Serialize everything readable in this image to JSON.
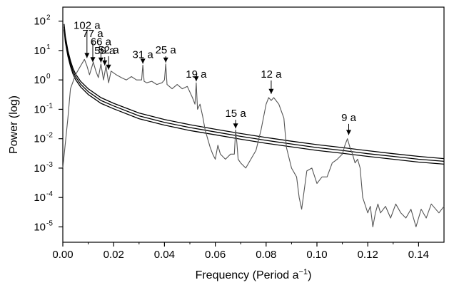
{
  "chart_data": {
    "type": "line",
    "title": "",
    "xlabel": "Frequency (Period a",
    "xlabel_sup": "−1",
    "xlabel_end": ")",
    "ylabel": "Power (log)",
    "x_scale": "linear",
    "y_scale": "log",
    "xlim": [
      0,
      0.15
    ],
    "ylim": [
      3e-06,
      300
    ],
    "x_ticks": [
      0.0,
      0.02,
      0.04,
      0.06,
      0.08,
      0.1,
      0.12,
      0.14
    ],
    "x_tick_labels": [
      "0.00",
      "0.02",
      "0.04",
      "0.06",
      "0.08",
      "0.10",
      "0.12",
      "0.14"
    ],
    "y_tick_base": "10",
    "y_ticks": [
      {
        "value": 100,
        "exp": "2"
      },
      {
        "value": 10,
        "exp": "1"
      },
      {
        "value": 1,
        "exp": "0"
      },
      {
        "value": 0.1,
        "exp": "-1"
      },
      {
        "value": 0.01,
        "exp": "-2"
      },
      {
        "value": 0.001,
        "exp": "-3"
      },
      {
        "value": 0.0001,
        "exp": "-4"
      },
      {
        "value": 1e-05,
        "exp": "-5"
      }
    ],
    "grid": false,
    "colors": {
      "spectrum": "#555555",
      "significance": "#000000",
      "axes": "#000000"
    },
    "series": [
      {
        "role": "spectrum",
        "x": [
          0.0,
          0.002,
          0.003,
          0.005,
          0.007,
          0.0085,
          0.0095,
          0.0105,
          0.012,
          0.013,
          0.014,
          0.015,
          0.016,
          0.017,
          0.018,
          0.019,
          0.021,
          0.023,
          0.025,
          0.027,
          0.029,
          0.031,
          0.0315,
          0.032,
          0.033,
          0.035,
          0.037,
          0.039,
          0.04,
          0.0405,
          0.041,
          0.043,
          0.045,
          0.047,
          0.049,
          0.051,
          0.052,
          0.0525,
          0.053,
          0.054,
          0.055,
          0.056,
          0.057,
          0.058,
          0.059,
          0.06,
          0.061,
          0.062,
          0.064,
          0.066,
          0.0675,
          0.068,
          0.0685,
          0.069,
          0.07,
          0.072,
          0.074,
          0.076,
          0.078,
          0.08,
          0.081,
          0.082,
          0.083,
          0.085,
          0.087,
          0.088,
          0.09,
          0.092,
          0.093,
          0.094,
          0.096,
          0.098,
          0.1,
          0.102,
          0.104,
          0.106,
          0.108,
          0.11,
          0.111,
          0.112,
          0.113,
          0.114,
          0.115,
          0.116,
          0.117,
          0.118,
          0.12,
          0.121,
          0.122,
          0.123,
          0.124,
          0.125,
          0.127,
          0.129,
          0.131,
          0.133,
          0.135,
          0.137,
          0.139,
          0.141,
          0.143,
          0.145,
          0.148,
          0.15
        ],
        "y": [
          0.001,
          0.05,
          0.5,
          1.5,
          3.0,
          5.0,
          3.0,
          1.5,
          4.0,
          2.0,
          1.2,
          3.5,
          1.0,
          3.0,
          0.8,
          2.0,
          1.5,
          1.2,
          1.0,
          1.3,
          1.0,
          1.0,
          3.2,
          0.9,
          0.8,
          0.9,
          0.7,
          0.8,
          1.0,
          3.5,
          0.7,
          0.5,
          0.7,
          0.5,
          0.6,
          0.25,
          0.15,
          0.8,
          0.1,
          0.15,
          0.06,
          0.02,
          0.01,
          0.005,
          0.003,
          0.002,
          0.006,
          0.003,
          0.002,
          0.003,
          0.003,
          0.02,
          0.007,
          0.002,
          0.0015,
          0.001,
          0.002,
          0.004,
          0.02,
          0.15,
          0.25,
          0.2,
          0.25,
          0.15,
          0.05,
          0.005,
          0.001,
          0.0005,
          0.0001,
          4e-05,
          0.0008,
          0.001,
          0.0003,
          0.0005,
          0.0005,
          0.0015,
          0.002,
          0.003,
          0.006,
          0.01,
          0.005,
          0.003,
          0.0015,
          0.002,
          0.001,
          0.0001,
          3e-05,
          5e-05,
          1e-05,
          3e-05,
          6e-05,
          3e-05,
          5e-05,
          2e-05,
          6e-05,
          3e-05,
          2e-05,
          4e-05,
          1e-05,
          4e-05,
          2e-05,
          6e-05,
          3e-05,
          5e-05
        ]
      },
      {
        "role": "significance-upper",
        "x": [
          0.0005,
          0.001,
          0.002,
          0.003,
          0.004,
          0.005,
          0.007,
          0.01,
          0.015,
          0.02,
          0.03,
          0.04,
          0.05,
          0.06,
          0.07,
          0.08,
          0.09,
          0.1,
          0.11,
          0.12,
          0.13,
          0.14,
          0.15
        ],
        "y": [
          80,
          30,
          10,
          4.5,
          2.5,
          1.6,
          0.9,
          0.5,
          0.25,
          0.16,
          0.075,
          0.045,
          0.03,
          0.021,
          0.015,
          0.011,
          0.0082,
          0.0063,
          0.005,
          0.0039,
          0.0031,
          0.0025,
          0.0021
        ]
      },
      {
        "role": "significance-middle",
        "x": [
          0.0005,
          0.001,
          0.002,
          0.003,
          0.004,
          0.005,
          0.007,
          0.01,
          0.015,
          0.02,
          0.03,
          0.04,
          0.05,
          0.06,
          0.07,
          0.08,
          0.09,
          0.1,
          0.11,
          0.12,
          0.13,
          0.14,
          0.15
        ],
        "y": [
          65,
          24,
          8,
          3.6,
          2.0,
          1.3,
          0.72,
          0.4,
          0.2,
          0.13,
          0.06,
          0.036,
          0.024,
          0.017,
          0.012,
          0.0088,
          0.0066,
          0.005,
          0.004,
          0.0031,
          0.0025,
          0.002,
          0.0017
        ]
      },
      {
        "role": "significance-lower",
        "x": [
          0.0005,
          0.001,
          0.002,
          0.003,
          0.004,
          0.005,
          0.007,
          0.01,
          0.015,
          0.02,
          0.03,
          0.04,
          0.05,
          0.06,
          0.07,
          0.08,
          0.09,
          0.1,
          0.11,
          0.12,
          0.13,
          0.14,
          0.15
        ],
        "y": [
          52,
          19,
          6.4,
          2.9,
          1.6,
          1.04,
          0.58,
          0.32,
          0.16,
          0.104,
          0.048,
          0.029,
          0.019,
          0.0136,
          0.0096,
          0.007,
          0.0053,
          0.004,
          0.0032,
          0.0025,
          0.002,
          0.0016,
          0.00136
        ]
      }
    ],
    "annotations": [
      {
        "id": "102a",
        "text": "102 a",
        "x": 0.0095,
        "y": 5.0,
        "label_y": 55
      },
      {
        "id": "77a",
        "text": "77 a",
        "x": 0.0118,
        "y": 3.6,
        "label_y": 29
      },
      {
        "id": "66a",
        "text": "66 a",
        "x": 0.015,
        "y": 3.5,
        "label_y": 15
      },
      {
        "id": "59a",
        "text": "59 a",
        "x": 0.0165,
        "y": 2.8,
        "label_y": 7.5
      },
      {
        "id": "52a",
        "text": "52 a",
        "x": 0.018,
        "y": 2.0,
        "label_y": 8.0
      },
      {
        "id": "31a",
        "text": "31 a",
        "x": 0.0315,
        "y": 3.2,
        "label_y": 5.5
      },
      {
        "id": "25a",
        "text": "25 a",
        "x": 0.0405,
        "y": 3.5,
        "label_y": 8.0
      },
      {
        "id": "19a",
        "text": "19 a",
        "x": 0.0525,
        "y": 0.8,
        "label_y": 1.2
      },
      {
        "id": "15a",
        "text": "15 a",
        "x": 0.068,
        "y": 0.02,
        "label_y": 0.055
      },
      {
        "id": "12a",
        "text": "12 a",
        "x": 0.082,
        "y": 0.3,
        "label_y": 1.2
      },
      {
        "id": "9a",
        "text": "9 a",
        "x": 0.1125,
        "y": 0.012,
        "label_y": 0.04
      }
    ]
  }
}
